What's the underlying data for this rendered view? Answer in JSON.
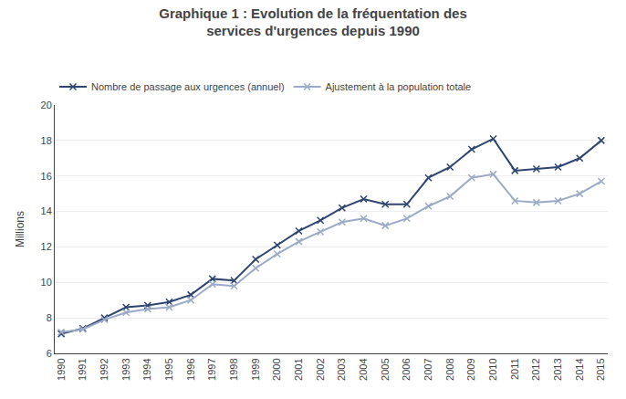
{
  "chart_data": {
    "type": "line",
    "title": "Graphique 1 : Evolution de la fréquentation des\nservices d'urgences depuis 1990",
    "y_label": "Millions",
    "x": [
      1990,
      1991,
      1992,
      1993,
      1994,
      1995,
      1996,
      1997,
      1998,
      1999,
      2000,
      2001,
      2002,
      2003,
      2004,
      2005,
      2006,
      2007,
      2008,
      2009,
      2010,
      2011,
      2012,
      2013,
      2014,
      2015
    ],
    "series": [
      {
        "name": "Nombre de passage aux urgences (annuel)",
        "color": "#2E4570",
        "marker": "x",
        "values": [
          7.1,
          7.4,
          8.0,
          8.6,
          8.7,
          8.9,
          9.3,
          10.2,
          10.1,
          11.3,
          12.1,
          12.9,
          13.5,
          14.2,
          14.7,
          14.4,
          14.4,
          15.9,
          16.5,
          17.5,
          18.1,
          16.3,
          16.4,
          16.5,
          17.0,
          18.0
        ]
      },
      {
        "name": "Ajustement à la population totale",
        "color": "#9BAAC7",
        "marker": "x",
        "values": [
          7.2,
          7.35,
          7.9,
          8.3,
          8.5,
          8.6,
          9.0,
          9.9,
          9.8,
          10.8,
          11.6,
          12.3,
          12.85,
          13.4,
          13.6,
          13.2,
          13.6,
          14.3,
          14.85,
          15.9,
          16.1,
          14.6,
          14.5,
          14.6,
          15.0,
          15.7
        ]
      }
    ],
    "xlim": [
      1989.7,
      2015.3
    ],
    "xticks": [
      1990,
      1991,
      1992,
      1993,
      1994,
      1995,
      1996,
      1997,
      1998,
      1999,
      2000,
      2001,
      2002,
      2003,
      2004,
      2005,
      2006,
      2007,
      2008,
      2009,
      2010,
      2011,
      2012,
      2013,
      2014,
      2015
    ],
    "ylim": [
      6,
      20
    ],
    "yticks": [
      6,
      8,
      10,
      12,
      14,
      16,
      18,
      20
    ],
    "grid": true,
    "legend": "upper left"
  }
}
